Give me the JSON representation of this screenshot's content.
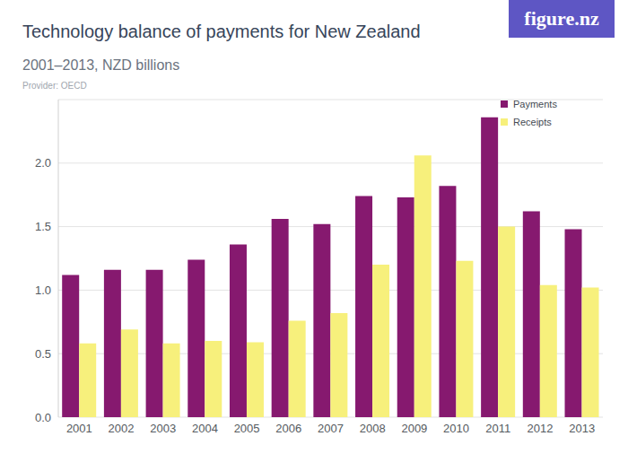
{
  "chart_data": {
    "type": "bar",
    "title": "Technology balance of payments for New Zealand",
    "subtitle": "2001–2013, NZD billions",
    "provider": "Provider: OECD",
    "brand": "figure.nz",
    "categories": [
      "2001",
      "2002",
      "2003",
      "2004",
      "2005",
      "2006",
      "2007",
      "2008",
      "2009",
      "2010",
      "2011",
      "2012",
      "2013"
    ],
    "series": [
      {
        "name": "Payments",
        "color": "#86196f",
        "values": [
          1.12,
          1.16,
          1.16,
          1.24,
          1.36,
          1.56,
          1.52,
          1.74,
          1.73,
          1.82,
          2.36,
          1.62,
          1.48
        ]
      },
      {
        "name": "Receipts",
        "color": "#f7f07c",
        "values": [
          0.58,
          0.69,
          0.58,
          0.6,
          0.59,
          0.76,
          0.82,
          1.2,
          2.06,
          1.23,
          1.5,
          1.04,
          1.02
        ]
      }
    ],
    "ylim": [
      0,
      2.5
    ],
    "yticks": [
      {
        "value": 0,
        "label": "0.0"
      },
      {
        "value": 0.5,
        "label": "0.5"
      },
      {
        "value": 1,
        "label": "1.0"
      },
      {
        "value": 1.5,
        "label": "1.5"
      },
      {
        "value": 2,
        "label": "2.0"
      }
    ],
    "grid": true,
    "legend": "top-right"
  }
}
